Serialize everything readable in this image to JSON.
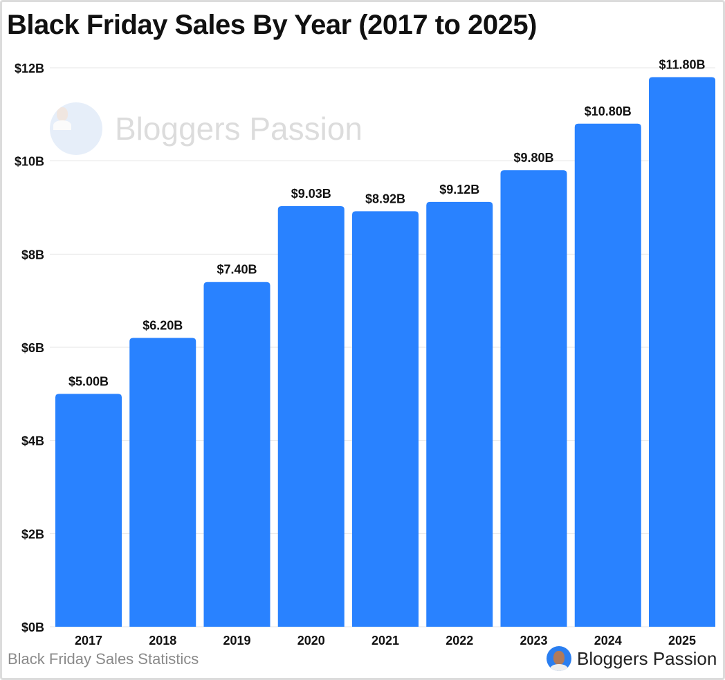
{
  "title": "Black Friday Sales By Year (2017 to 2025)",
  "footer": {
    "caption": "Black Friday Sales Statistics",
    "brand": "Bloggers Passion"
  },
  "watermark": "Bloggers Passion",
  "chart_data": {
    "type": "bar",
    "title": "Black Friday Sales By Year (2017 to 2025)",
    "categories": [
      "2017",
      "2018",
      "2019",
      "2020",
      "2021",
      "2022",
      "2023",
      "2024",
      "2025"
    ],
    "values": [
      5.0,
      6.2,
      7.4,
      9.03,
      8.92,
      9.12,
      9.8,
      10.8,
      11.8
    ],
    "data_labels": [
      "$5.00B",
      "$6.20B",
      "$7.40B",
      "$9.03B",
      "$8.92B",
      "$9.12B",
      "$9.80B",
      "$10.80B",
      "$11.80B"
    ],
    "yticks": [
      0,
      2,
      4,
      6,
      8,
      10,
      12
    ],
    "ytick_labels": [
      "$0B",
      "$2B",
      "$4B",
      "$6B",
      "$8B",
      "$10B",
      "$12B"
    ],
    "ylim": [
      0,
      12
    ],
    "xlabel": "",
    "ylabel": "",
    "grid": true,
    "bar_color": "#2982ff"
  }
}
